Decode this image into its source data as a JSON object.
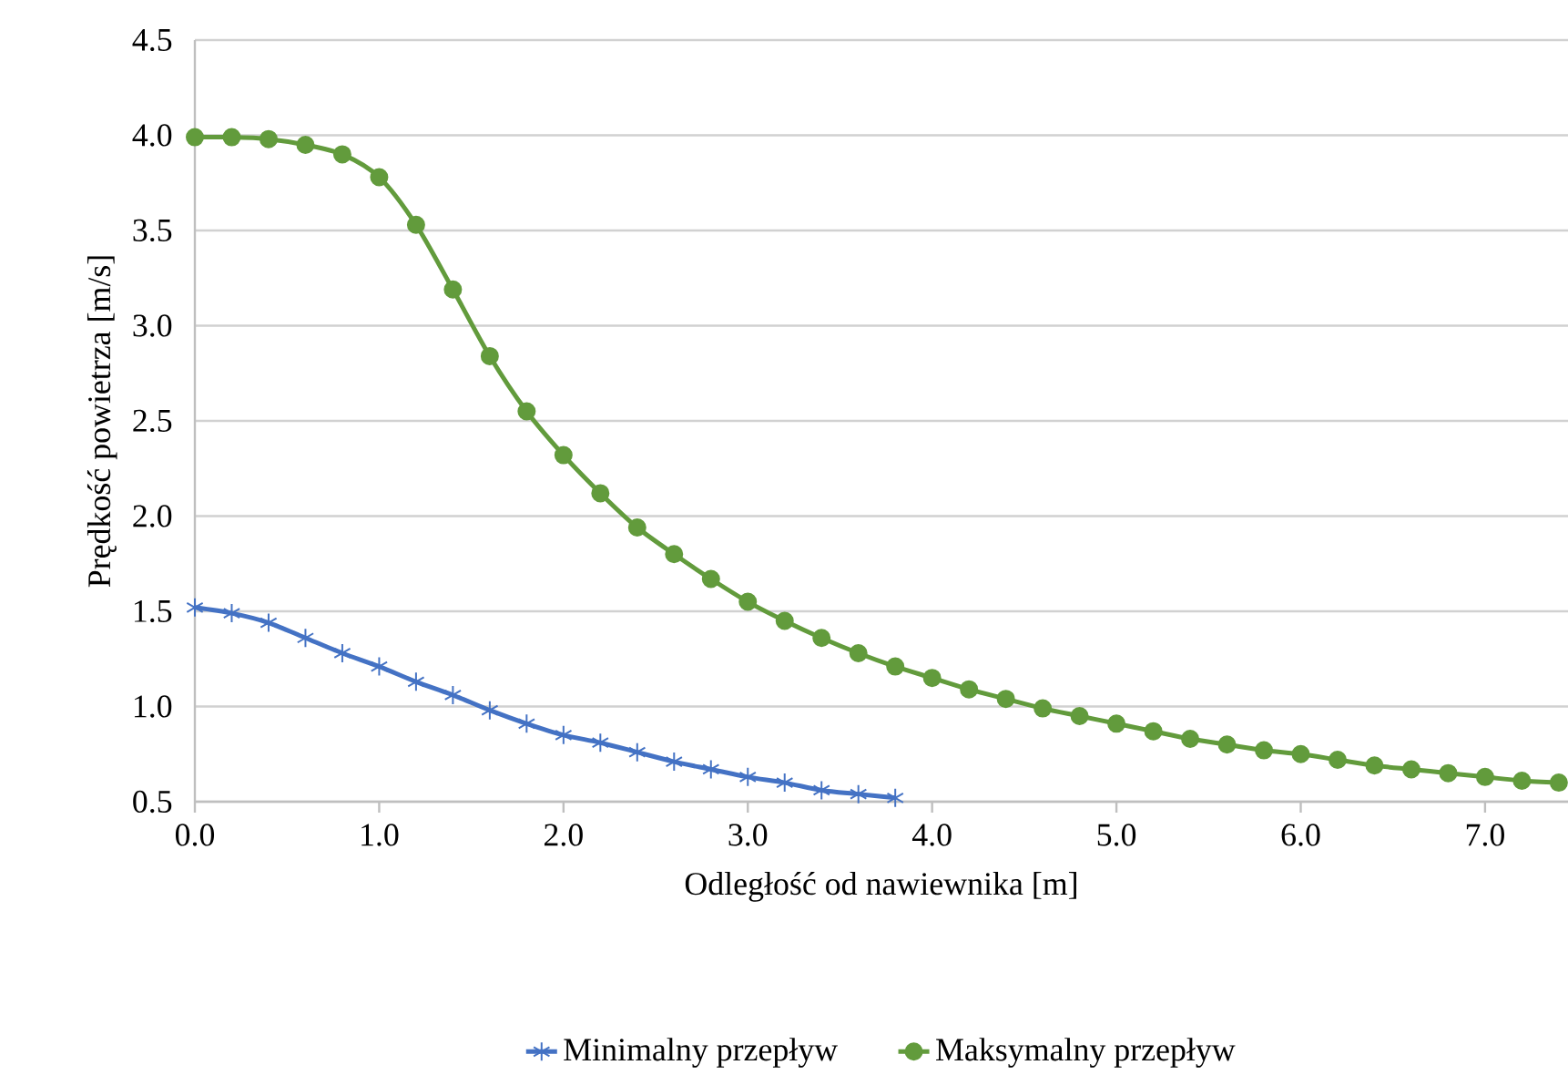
{
  "chart_data": {
    "type": "line",
    "xlabel": "Odległość od nawiewnika [m]",
    "ylabel": "Prędkość powietrza [m/s]",
    "xlim": [
      0,
      7.45
    ],
    "ylim": [
      0.5,
      4.5
    ],
    "xticks": [
      {
        "value": 0,
        "label": "0.0"
      },
      {
        "value": 1,
        "label": "1.0"
      },
      {
        "value": 2,
        "label": "2.0"
      },
      {
        "value": 3,
        "label": "3.0"
      },
      {
        "value": 4,
        "label": "4.0"
      },
      {
        "value": 5,
        "label": "5.0"
      },
      {
        "value": 6,
        "label": "6.0"
      },
      {
        "value": 7,
        "label": "7.0"
      }
    ],
    "yticks": [
      0.5,
      {
        "value": 1,
        "label": "1.0"
      },
      1.5,
      {
        "value": 2,
        "label": "2.0"
      },
      2.5,
      {
        "value": 3,
        "label": "3.0"
      },
      3.5,
      {
        "value": 4,
        "label": "4.0"
      },
      4.5
    ],
    "grid": "y",
    "legend": "bottom",
    "line_style": "solid",
    "series": [
      {
        "name": "Minimalny przepływ",
        "color": "#4472c4",
        "marker": "cross",
        "x": [
          0,
          0.2,
          0.4,
          0.6,
          0.8,
          1.0,
          1.2,
          1.4,
          1.6,
          1.8,
          2.0,
          2.2,
          2.4,
          2.6,
          2.8,
          3.0,
          3.2,
          3.4,
          3.6,
          3.8
        ],
        "values": [
          1.52,
          1.49,
          1.44,
          1.36,
          1.28,
          1.21,
          1.13,
          1.06,
          0.98,
          0.91,
          0.85,
          0.81,
          0.76,
          0.71,
          0.67,
          0.63,
          0.6,
          0.56,
          0.54,
          0.52
        ]
      },
      {
        "name": "Maksymalny przepływ",
        "color": "#629b3c",
        "marker": "circle",
        "x": [
          0,
          0.2,
          0.4,
          0.6,
          0.8,
          1.0,
          1.2,
          1.4,
          1.6,
          1.8,
          2.0,
          2.2,
          2.4,
          2.6,
          2.8,
          3.0,
          3.2,
          3.4,
          3.6,
          3.8,
          4.0,
          4.2,
          4.4,
          4.6,
          4.8,
          5.0,
          5.2,
          5.4,
          5.6,
          5.8,
          6.0,
          6.2,
          6.4,
          6.6,
          6.8,
          7.0,
          7.2,
          7.4
        ],
        "values": [
          3.99,
          3.99,
          3.98,
          3.95,
          3.9,
          3.78,
          3.53,
          3.19,
          2.84,
          2.55,
          2.32,
          2.12,
          1.94,
          1.8,
          1.67,
          1.55,
          1.45,
          1.36,
          1.28,
          1.21,
          1.15,
          1.09,
          1.04,
          0.99,
          0.95,
          0.91,
          0.87,
          0.83,
          0.8,
          0.77,
          0.75,
          0.72,
          0.69,
          0.67,
          0.65,
          0.63,
          0.61,
          0.6
        ]
      }
    ]
  }
}
